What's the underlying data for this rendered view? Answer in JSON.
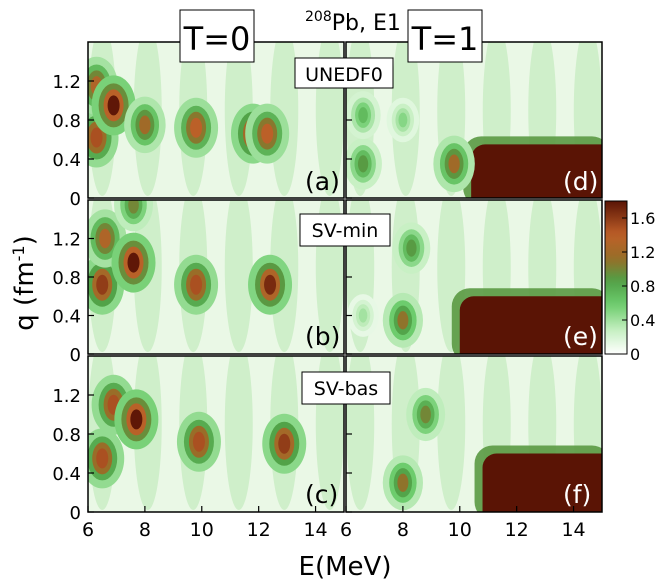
{
  "chart_data": {
    "type": "heatmap",
    "title_sup": "208",
    "title_main": "Pb, E1",
    "column_labels": [
      "T=0",
      "T=1"
    ],
    "row_labels": [
      "UNEDF0",
      "SV-min",
      "SV-bas"
    ],
    "panel_letters": [
      "(a)",
      "(d)",
      "(b)",
      "(e)",
      "(c)",
      "(f)"
    ],
    "xlabel": "E(MeV)",
    "ylabel_main": "q (fm",
    "ylabel_sup": "-1",
    "ylabel_close": ")",
    "xlim": [
      6,
      15
    ],
    "ylim": [
      0,
      1.6
    ],
    "xticks": [
      6,
      8,
      10,
      12,
      14
    ],
    "yticks": [
      0,
      0.4,
      0.8,
      1.2
    ],
    "xtick_labels": [
      "6",
      "8",
      "10",
      "12",
      "14"
    ],
    "ytick_labels": [
      "0",
      "0.4",
      "0.8",
      "1.2"
    ],
    "colorbar": {
      "min": 0,
      "max": 1.8,
      "ticks": [
        0,
        0.4,
        0.8,
        1.2,
        1.6
      ],
      "tick_labels": [
        "0",
        "0.4",
        "0.8",
        "1.2",
        "1.6"
      ],
      "colors": [
        "#ffffff",
        "#9fe09a",
        "#3fb850",
        "#7a7a2a",
        "#c0602a",
        "#5a1505"
      ]
    },
    "panels": [
      {
        "id": "a",
        "row": 0,
        "col": 0,
        "blobs": [
          {
            "E": 6.3,
            "q": 0.62,
            "peak": 1.5
          },
          {
            "E": 6.3,
            "q": 1.15,
            "peak": 1.3
          },
          {
            "E": 6.9,
            "q": 0.95,
            "peak": 1.8
          },
          {
            "E": 8.0,
            "q": 0.75,
            "peak": 1.2
          },
          {
            "E": 9.8,
            "q": 0.72,
            "peak": 1.4
          },
          {
            "E": 11.8,
            "q": 0.66,
            "peak": 1.6
          },
          {
            "E": 12.3,
            "q": 0.66,
            "peak": 1.4
          }
        ]
      },
      {
        "id": "d",
        "row": 0,
        "col": 1,
        "blobs": [
          {
            "E": 6.6,
            "q": 0.35,
            "peak": 0.9
          },
          {
            "E": 6.6,
            "q": 0.85,
            "peak": 0.7
          },
          {
            "E": 8.0,
            "q": 0.8,
            "peak": 0.5
          },
          {
            "E": 9.8,
            "q": 0.35,
            "peak": 1.2
          }
        ],
        "resonance_region": {
          "E_start": 10.4,
          "q_top": 0.55
        }
      },
      {
        "id": "b",
        "row": 1,
        "col": 0,
        "blobs": [
          {
            "E": 6.5,
            "q": 0.72,
            "peak": 1.6
          },
          {
            "E": 6.6,
            "q": 1.2,
            "peak": 1.3
          },
          {
            "E": 7.6,
            "q": 0.95,
            "peak": 1.8
          },
          {
            "E": 7.6,
            "q": 1.55,
            "peak": 1.0
          },
          {
            "E": 9.8,
            "q": 0.72,
            "peak": 1.5
          },
          {
            "E": 12.4,
            "q": 0.72,
            "peak": 1.7
          }
        ]
      },
      {
        "id": "e",
        "row": 1,
        "col": 1,
        "blobs": [
          {
            "E": 8.0,
            "q": 0.35,
            "peak": 1.1
          },
          {
            "E": 8.3,
            "q": 1.1,
            "peak": 0.9
          },
          {
            "E": 6.6,
            "q": 0.4,
            "peak": 0.4
          }
        ],
        "resonance_region": {
          "E_start": 10.0,
          "q_top": 0.6
        }
      },
      {
        "id": "c",
        "row": 2,
        "col": 0,
        "blobs": [
          {
            "E": 6.5,
            "q": 0.55,
            "peak": 1.5
          },
          {
            "E": 6.9,
            "q": 1.1,
            "peak": 1.5
          },
          {
            "E": 7.7,
            "q": 0.95,
            "peak": 1.8
          },
          {
            "E": 9.9,
            "q": 0.72,
            "peak": 1.5
          },
          {
            "E": 12.9,
            "q": 0.7,
            "peak": 1.6
          }
        ]
      },
      {
        "id": "f",
        "row": 2,
        "col": 1,
        "blobs": [
          {
            "E": 8.0,
            "q": 0.3,
            "peak": 1.1
          },
          {
            "E": 8.8,
            "q": 1.0,
            "peak": 1.0
          }
        ],
        "resonance_region": {
          "E_start": 10.8,
          "q_top": 0.6
        }
      }
    ]
  }
}
